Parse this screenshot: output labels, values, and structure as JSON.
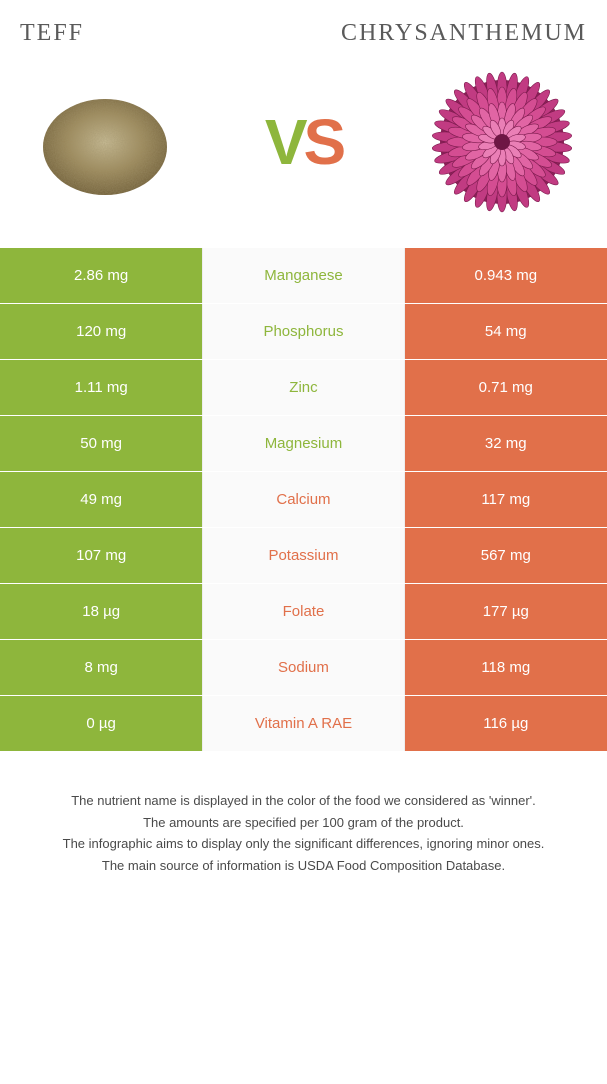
{
  "header": {
    "left_title": "Teff",
    "right_title": "Chrysanthemum"
  },
  "vs": {
    "v": "V",
    "s": "S",
    "v_color": "#8eb63c",
    "s_color": "#e1704a"
  },
  "colors": {
    "left_bg": "#8eb63c",
    "right_bg": "#e1704a",
    "left_text": "#ffffff",
    "right_text": "#ffffff",
    "mid_bg": "#fafafa"
  },
  "rows": [
    {
      "left": "2.86 mg",
      "nutrient": "Manganese",
      "right": "0.943 mg",
      "winner": "left"
    },
    {
      "left": "120 mg",
      "nutrient": "Phosphorus",
      "right": "54 mg",
      "winner": "left"
    },
    {
      "left": "1.11 mg",
      "nutrient": "Zinc",
      "right": "0.71 mg",
      "winner": "left"
    },
    {
      "left": "50 mg",
      "nutrient": "Magnesium",
      "right": "32 mg",
      "winner": "left"
    },
    {
      "left": "49 mg",
      "nutrient": "Calcium",
      "right": "117 mg",
      "winner": "right"
    },
    {
      "left": "107 mg",
      "nutrient": "Potassium",
      "right": "567 mg",
      "winner": "right"
    },
    {
      "left": "18 µg",
      "nutrient": "Folate",
      "right": "177 µg",
      "winner": "right"
    },
    {
      "left": "8 mg",
      "nutrient": "Sodium",
      "right": "118 mg",
      "winner": "right"
    },
    {
      "left": "0 µg",
      "nutrient": "Vitamin A RAE",
      "right": "116 µg",
      "winner": "right"
    }
  ],
  "footer": {
    "line1": "The nutrient name is displayed in the color of the food we considered as 'winner'.",
    "line2": "The amounts are specified per 100 gram of the product.",
    "line3": "The infographic aims to display only the significant differences, ignoring minor ones.",
    "line4": "The main source of information is USDA Food Composition Database."
  }
}
